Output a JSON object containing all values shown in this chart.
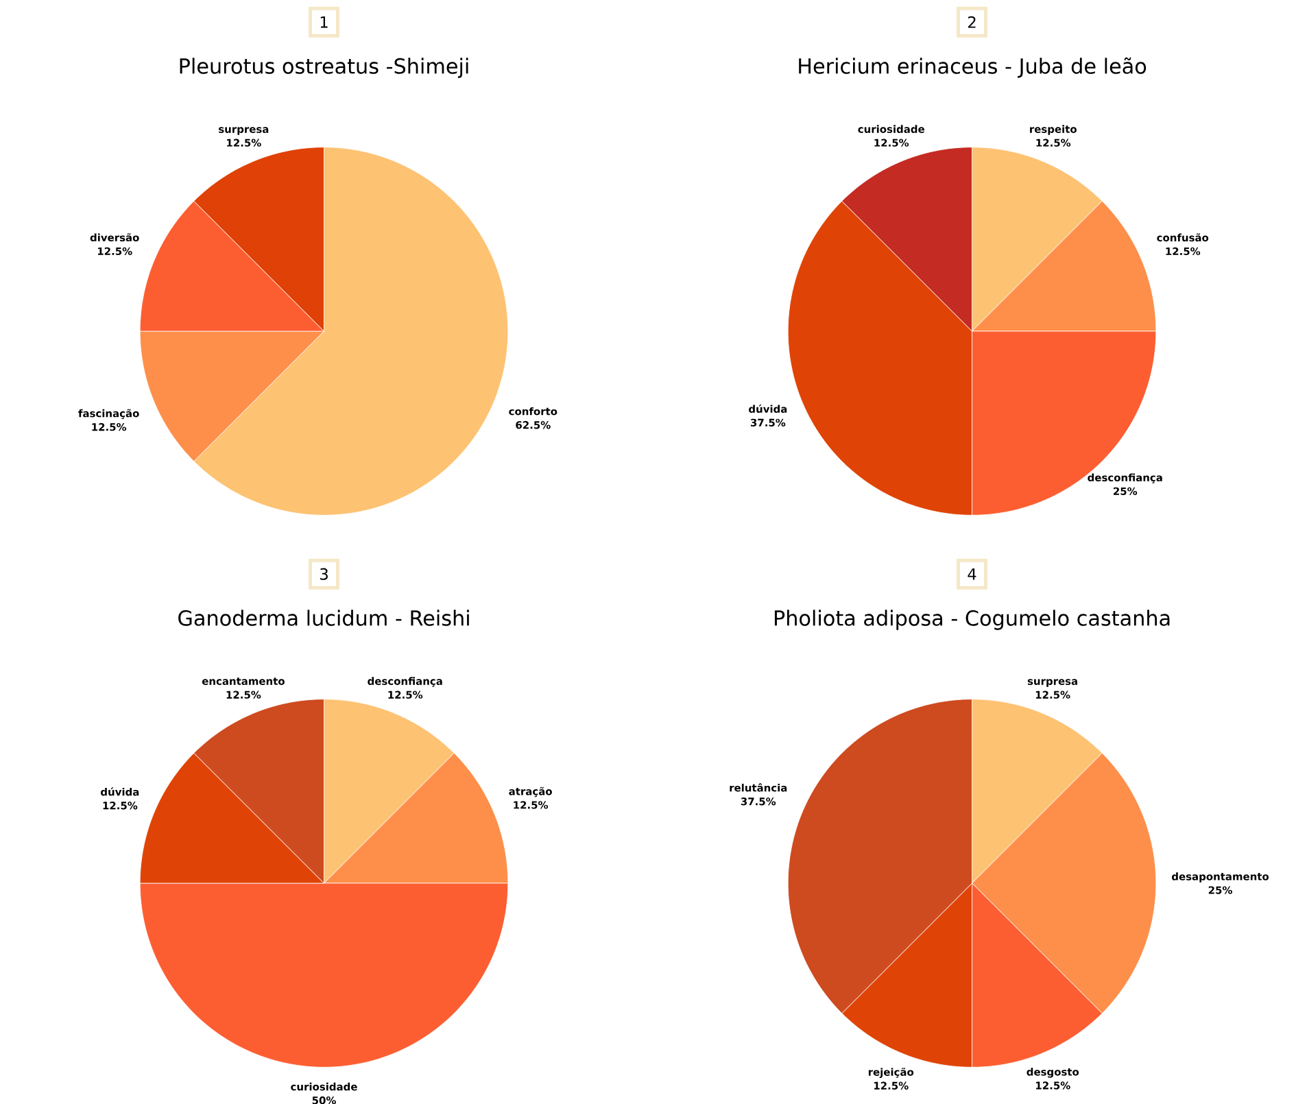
{
  "chart_data": [
    {
      "type": "pie",
      "title": "Pleurotus ostreatus -Shimeji",
      "annotations": [
        "1"
      ],
      "categories": [
        "conforto",
        "fascinação",
        "diversão",
        "surpresa"
      ],
      "values": [
        62.5,
        12.5,
        12.5,
        12.5
      ],
      "value_labels": [
        "62.5%",
        "12.5%",
        "12.5%",
        "12.5%"
      ],
      "colors": [
        "#fdc272",
        "#fd8f4a",
        "#fc5e32",
        "#df4106"
      ]
    },
    {
      "type": "pie",
      "title": "Hericium erinaceus - Juba de leão",
      "annotations": [
        "2"
      ],
      "categories": [
        "respeito",
        "confusão",
        "desconfiança",
        "dúvida",
        "curiosidade"
      ],
      "values": [
        12.5,
        12.5,
        25,
        37.5,
        12.5
      ],
      "value_labels": [
        "12.5%",
        "12.5%",
        "25%",
        "37.5%",
        "12.5%"
      ],
      "colors": [
        "#fdc272",
        "#fd8f4a",
        "#fc5e32",
        "#df4406",
        "#c42b22"
      ]
    },
    {
      "type": "pie",
      "title": "Ganoderma lucidum - Reishi",
      "annotations": [
        "3"
      ],
      "categories": [
        "desconfiança",
        "atração",
        "curiosidade",
        "dúvida",
        "encantamento"
      ],
      "values": [
        12.5,
        12.5,
        50,
        12.5,
        12.5
      ],
      "value_labels": [
        "12.5%",
        "12.5%",
        "50%",
        "12.5%",
        "12.5%"
      ],
      "colors": [
        "#fdc272",
        "#fd8f4a",
        "#fc5e32",
        "#df4406",
        "#ce4a1f"
      ]
    },
    {
      "type": "pie",
      "title": "Pholiota adiposa - Cogumelo castanha",
      "annotations": [
        "4"
      ],
      "categories": [
        "surpresa",
        "desapontamento",
        "desgosto",
        "rejeição",
        "relutância"
      ],
      "values": [
        12.5,
        25,
        12.5,
        12.5,
        37.5
      ],
      "value_labels": [
        "12.5%",
        "25%",
        "12.5%",
        "12.5%",
        "37.5%"
      ],
      "colors": [
        "#fdc272",
        "#fd8f4a",
        "#fc5e32",
        "#df4406",
        "#ce4a1f"
      ]
    }
  ]
}
